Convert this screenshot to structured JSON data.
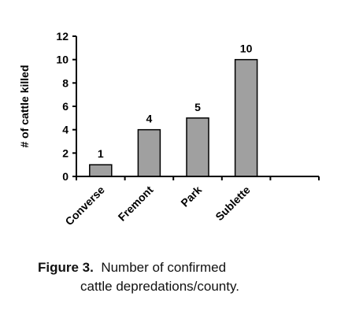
{
  "chart_data": {
    "type": "bar",
    "categories": [
      "Converse",
      "Fremont",
      "Park",
      "Sublette"
    ],
    "values": [
      1,
      4,
      5,
      10
    ],
    "data_labels": [
      "1",
      "4",
      "5",
      "10"
    ],
    "title": "",
    "xlabel": "",
    "ylabel": "# of cattle killed",
    "ylim": [
      0,
      12
    ],
    "yticks": [
      "0",
      "2",
      "4",
      "6",
      "8",
      "10",
      "12"
    ],
    "grid": false,
    "legend": "none",
    "bar_color": "#a0a0a0",
    "bar_stroke": "#000000"
  },
  "caption": {
    "figure_label": "Figure 3.",
    "line1_text": "Number of confirmed",
    "line2_text": "cattle depredations/county."
  }
}
